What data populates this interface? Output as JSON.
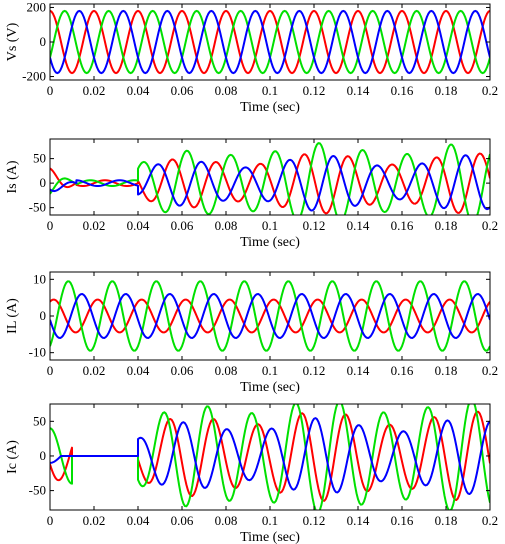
{
  "chart_data": [
    {
      "type": "line",
      "ylabel": "Vs (V)",
      "xlabel": "Time (sec)",
      "xlim": [
        0,
        0.2
      ],
      "ylim": [
        -220,
        220
      ],
      "xticks": [
        0,
        0.02,
        0.04,
        0.06,
        0.08,
        0.1,
        0.12,
        0.14,
        0.16,
        0.18,
        0.2
      ],
      "xtick_labels": [
        "0",
        "0.02",
        "0.04",
        "0.06",
        "0.08",
        "0.1",
        "0.12",
        "0.14",
        "0.16",
        "0.18",
        "0.2"
      ],
      "yticks": [
        200,
        0,
        -200
      ],
      "ytick_labels": [
        "200",
        "0",
        "-200"
      ],
      "grid": false,
      "series": [
        {
          "color": "#ff0000",
          "segments": [
            {
              "from": 0,
              "to": 0.2,
              "amp": 180,
              "freq": 50,
              "phase_deg": 90
            }
          ]
        },
        {
          "color": "#00e000",
          "segments": [
            {
              "from": 0,
              "to": 0.2,
              "amp": 180,
              "freq": 50,
              "phase_deg": -30
            }
          ]
        },
        {
          "color": "#0000ff",
          "segments": [
            {
              "from": 0,
              "to": 0.2,
              "amp": 180,
              "freq": 50,
              "phase_deg": 210
            }
          ]
        }
      ]
    },
    {
      "type": "line",
      "ylabel": "Is (A)",
      "xlabel": "Time (sec)",
      "xlim": [
        0,
        0.2
      ],
      "ylim": [
        -65,
        90
      ],
      "xticks": [
        0,
        0.02,
        0.04,
        0.06,
        0.08,
        0.1,
        0.12,
        0.14,
        0.16,
        0.18,
        0.2
      ],
      "xtick_labels": [
        "0",
        "0.02",
        "0.04",
        "0.06",
        "0.08",
        "0.1",
        "0.12",
        "0.14",
        "0.16",
        "0.18",
        "0.2"
      ],
      "yticks": [
        50,
        0,
        -50
      ],
      "ytick_labels": [
        "50",
        "0",
        "-50"
      ],
      "grid": false,
      "series": [
        {
          "color": "#ff0000",
          "segments": [
            {
              "from": 0,
              "to": 0.012,
              "amp": 30,
              "freq": 50,
              "phase_deg": 90,
              "decay": 0.012
            },
            {
              "from": 0.012,
              "to": 0.04,
              "amp": 6,
              "freq": 50,
              "phase_deg": 0
            },
            {
              "from": 0.04,
              "to": 0.2,
              "amp": 50,
              "freq": 50,
              "phase_deg": 170,
              "swell": 0.06,
              "sub_amp": 12,
              "sub_freq": 15
            }
          ]
        },
        {
          "color": "#00e000",
          "segments": [
            {
              "from": 0,
              "to": 0.012,
              "amp": 25,
              "freq": 50,
              "phase_deg": -60,
              "decay": 0.012
            },
            {
              "from": 0.012,
              "to": 0.04,
              "amp": 6,
              "freq": 50,
              "phase_deg": 120
            },
            {
              "from": 0.04,
              "to": 0.2,
              "amp": 70,
              "freq": 50,
              "phase_deg": 50,
              "swell": 0.06,
              "sub_amp": 12,
              "sub_freq": 15
            }
          ]
        },
        {
          "color": "#0000ff",
          "segments": [
            {
              "from": 0,
              "to": 0.012,
              "amp": 20,
              "freq": 50,
              "phase_deg": 220,
              "decay": 0.012
            },
            {
              "from": 0.012,
              "to": 0.04,
              "amp": 6,
              "freq": 50,
              "phase_deg": 240
            },
            {
              "from": 0.04,
              "to": 0.2,
              "amp": 45,
              "freq": 50,
              "phase_deg": 290,
              "swell": 0.06,
              "sub_amp": 12,
              "sub_freq": 15
            }
          ]
        }
      ]
    },
    {
      "type": "line",
      "ylabel": "IL (A)",
      "xlabel": "Time (sec)",
      "xlim": [
        0,
        0.2
      ],
      "ylim": [
        -12,
        12
      ],
      "xticks": [
        0,
        0.02,
        0.04,
        0.06,
        0.08,
        0.1,
        0.12,
        0.14,
        0.16,
        0.18,
        0.2
      ],
      "xtick_labels": [
        "0",
        "0.02",
        "0.04",
        "0.06",
        "0.08",
        "0.1",
        "0.12",
        "0.14",
        "0.16",
        "0.18",
        "0.2"
      ],
      "yticks": [
        10,
        0,
        -10
      ],
      "ytick_labels": [
        "10",
        "0",
        "-10"
      ],
      "grid": false,
      "series": [
        {
          "color": "#ff0000",
          "segments": [
            {
              "from": 0,
              "to": 0.2,
              "amp": 4.5,
              "freq": 50,
              "phase_deg": 60
            }
          ]
        },
        {
          "color": "#00e000",
          "segments": [
            {
              "from": 0,
              "to": 0.2,
              "amp": 9.5,
              "freq": 50,
              "phase_deg": -60
            }
          ]
        },
        {
          "color": "#0000ff",
          "segments": [
            {
              "from": 0,
              "to": 0.2,
              "amp": 6,
              "freq": 50,
              "phase_deg": 190
            }
          ]
        }
      ]
    },
    {
      "type": "line",
      "ylabel": "Ic (A)",
      "xlabel": "Time (sec)",
      "xlim": [
        0,
        0.2
      ],
      "ylim": [
        -78,
        75
      ],
      "xticks": [
        0,
        0.02,
        0.04,
        0.06,
        0.08,
        0.1,
        0.12,
        0.14,
        0.16,
        0.18,
        0.2
      ],
      "xtick_labels": [
        "0",
        "0.02",
        "0.04",
        "0.06",
        "0.08",
        "0.1",
        "0.12",
        "0.14",
        "0.16",
        "0.18",
        "0.2"
      ],
      "yticks": [
        50,
        0,
        -50
      ],
      "ytick_labels": [
        "50",
        "0",
        "-50"
      ],
      "grid": false,
      "series": [
        {
          "color": "#ff0000",
          "segments": [
            {
              "from": 0,
              "to": 0.01,
              "amp": 35,
              "freq": 50,
              "phase_deg": 200
            },
            {
              "from": 0.01,
              "to": 0.04,
              "amp": 0,
              "freq": 50,
              "phase_deg": 0
            },
            {
              "from": 0.04,
              "to": 0.2,
              "amp": 55,
              "freq": 50,
              "phase_deg": 190,
              "swell": 0.04,
              "sub_amp": 10,
              "sub_freq": 15
            }
          ]
        },
        {
          "color": "#00e000",
          "segments": [
            {
              "from": 0,
              "to": 0.01,
              "amp": 40,
              "freq": 50,
              "phase_deg": 90
            },
            {
              "from": 0.01,
              "to": 0.04,
              "amp": 0,
              "freq": 50,
              "phase_deg": 0
            },
            {
              "from": 0.04,
              "to": 0.2,
              "amp": 72,
              "freq": 50,
              "phase_deg": 240,
              "swell": 0.04,
              "sub_amp": 10,
              "sub_freq": 15
            }
          ]
        },
        {
          "color": "#0000ff",
          "segments": [
            {
              "from": 0,
              "to": 0.005,
              "amp": 10,
              "freq": 50,
              "phase_deg": 270
            },
            {
              "from": 0.005,
              "to": 0.04,
              "amp": 0,
              "freq": 50,
              "phase_deg": 0
            },
            {
              "from": 0.04,
              "to": 0.2,
              "amp": 45,
              "freq": 50,
              "phase_deg": 80,
              "swell": 0.04,
              "sub_amp": 10,
              "sub_freq": 15
            }
          ]
        }
      ]
    }
  ]
}
